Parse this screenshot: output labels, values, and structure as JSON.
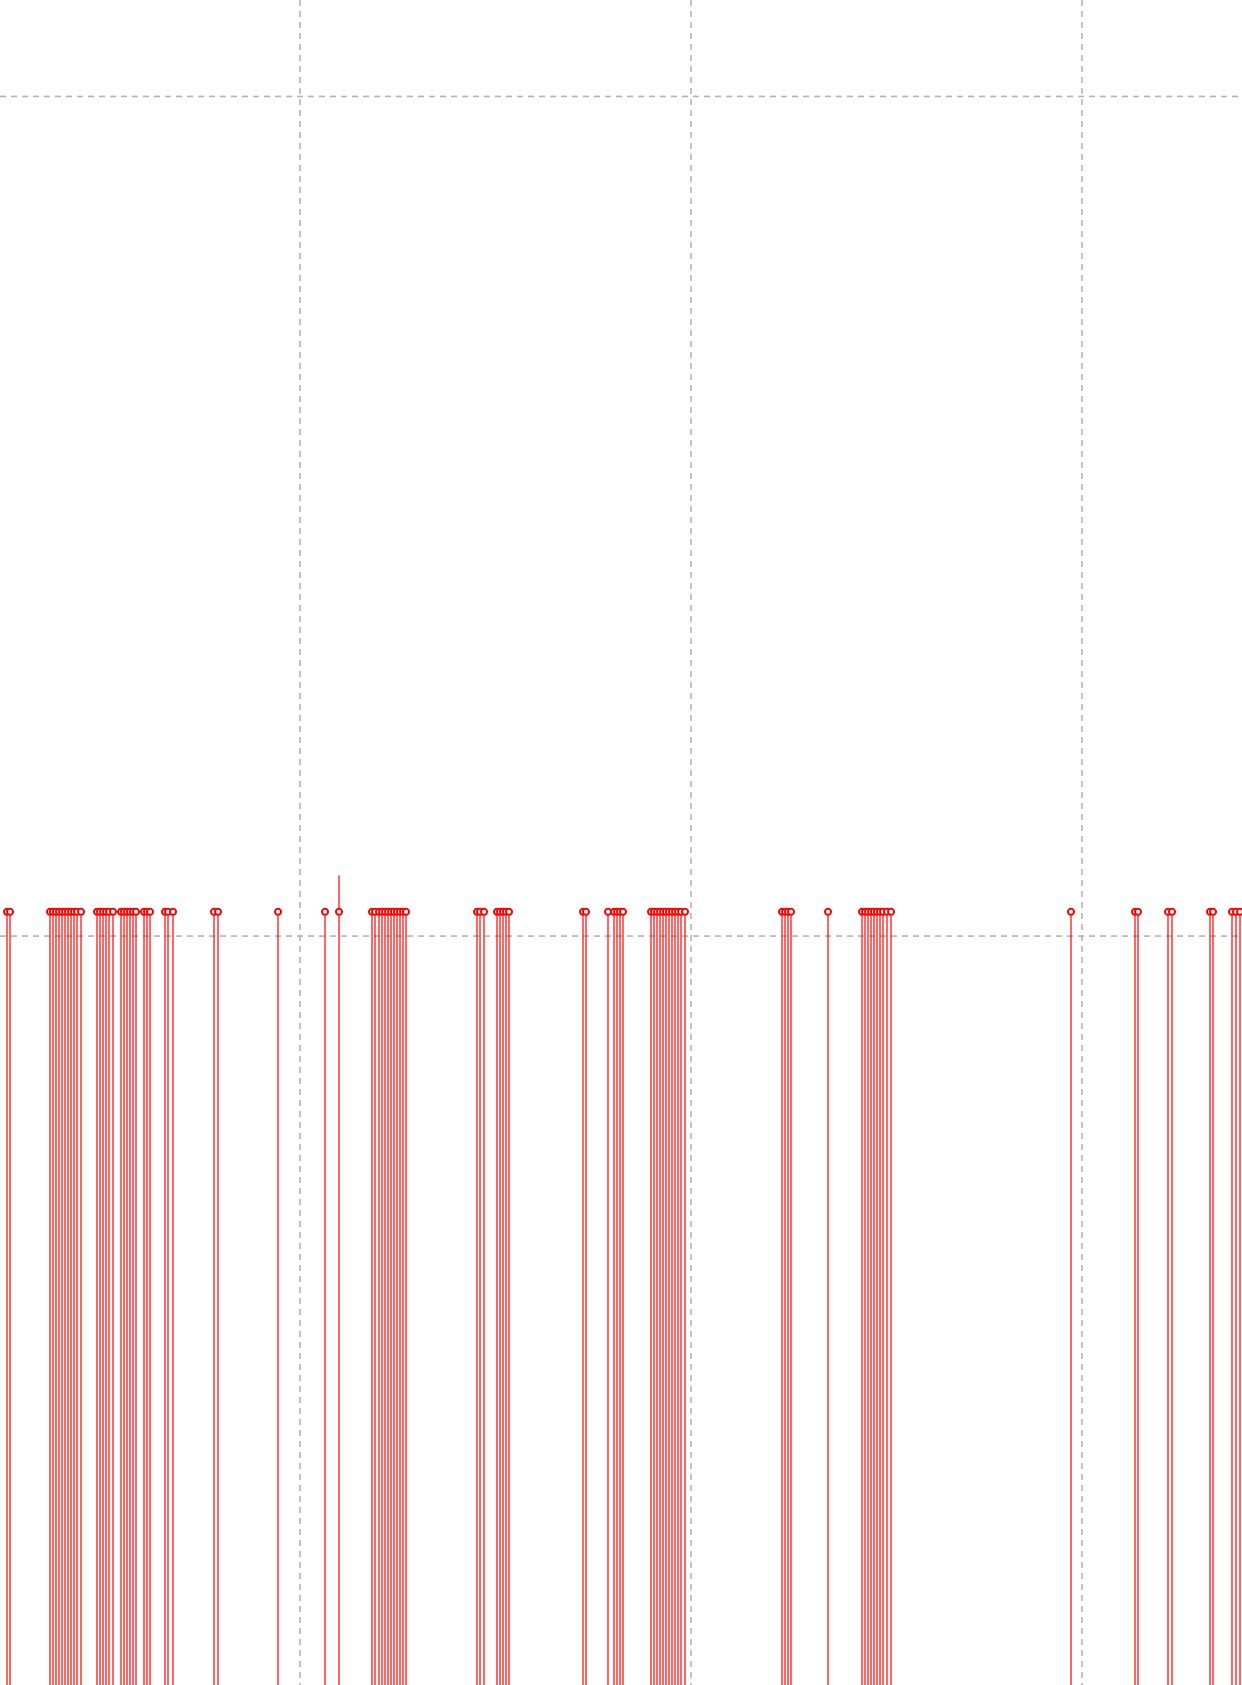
{
  "colors": {
    "background": "#ffffff",
    "grid": "#b4b4b4",
    "series": "#ff0000"
  },
  "chart_data": {
    "type": "scatter",
    "title": "",
    "xlabel": "",
    "ylabel": "",
    "grid": true,
    "legend": "none",
    "xlim": [
      0,
      1242
    ],
    "ylim": [
      -800,
      1000
    ],
    "x_gridlines": [
      300,
      691,
      1082
    ],
    "y_gridlines": [
      0,
      897
    ],
    "series": [
      {
        "marker": "circle-open",
        "stems": true,
        "baseline": -800,
        "points": [
          {
            "x": 7,
            "y": 26
          },
          {
            "x": 10,
            "y": 26
          },
          {
            "x": 50,
            "y": 26
          },
          {
            "x": 53,
            "y": 26
          },
          {
            "x": 56,
            "y": 26
          },
          {
            "x": 59,
            "y": 26
          },
          {
            "x": 62,
            "y": 26
          },
          {
            "x": 65,
            "y": 26
          },
          {
            "x": 68,
            "y": 26
          },
          {
            "x": 71,
            "y": 26
          },
          {
            "x": 74,
            "y": 26
          },
          {
            "x": 77,
            "y": 26
          },
          {
            "x": 81,
            "y": 26
          },
          {
            "x": 97,
            "y": 26
          },
          {
            "x": 100,
            "y": 26
          },
          {
            "x": 103,
            "y": 26
          },
          {
            "x": 106,
            "y": 26
          },
          {
            "x": 109,
            "y": 26
          },
          {
            "x": 113,
            "y": 26
          },
          {
            "x": 121,
            "y": 26
          },
          {
            "x": 124,
            "y": 26
          },
          {
            "x": 127,
            "y": 26
          },
          {
            "x": 130,
            "y": 26
          },
          {
            "x": 133,
            "y": 26
          },
          {
            "x": 136,
            "y": 26
          },
          {
            "x": 144,
            "y": 26
          },
          {
            "x": 147,
            "y": 26
          },
          {
            "x": 150,
            "y": 26
          },
          {
            "x": 165,
            "y": 26
          },
          {
            "x": 168,
            "y": 26
          },
          {
            "x": 173,
            "y": 26
          },
          {
            "x": 214,
            "y": 26
          },
          {
            "x": 218,
            "y": 26
          },
          {
            "x": 278,
            "y": 26
          },
          {
            "x": 325,
            "y": 26
          },
          {
            "x": 339,
            "y": 26,
            "spike": 65
          },
          {
            "x": 372,
            "y": 26
          },
          {
            "x": 375,
            "y": 26
          },
          {
            "x": 379,
            "y": 26
          },
          {
            "x": 382,
            "y": 26
          },
          {
            "x": 385,
            "y": 26
          },
          {
            "x": 388,
            "y": 26
          },
          {
            "x": 391,
            "y": 26
          },
          {
            "x": 394,
            "y": 26
          },
          {
            "x": 397,
            "y": 26
          },
          {
            "x": 400,
            "y": 26
          },
          {
            "x": 403,
            "y": 26
          },
          {
            "x": 406,
            "y": 26
          },
          {
            "x": 477,
            "y": 26
          },
          {
            "x": 480,
            "y": 26
          },
          {
            "x": 484,
            "y": 26
          },
          {
            "x": 497,
            "y": 26
          },
          {
            "x": 500,
            "y": 26
          },
          {
            "x": 503,
            "y": 26
          },
          {
            "x": 506,
            "y": 26
          },
          {
            "x": 509,
            "y": 26
          },
          {
            "x": 583,
            "y": 26
          },
          {
            "x": 586,
            "y": 26
          },
          {
            "x": 608,
            "y": 26
          },
          {
            "x": 614,
            "y": 26
          },
          {
            "x": 617,
            "y": 26
          },
          {
            "x": 620,
            "y": 26
          },
          {
            "x": 623,
            "y": 26
          },
          {
            "x": 651,
            "y": 26
          },
          {
            "x": 654,
            "y": 26
          },
          {
            "x": 657,
            "y": 26
          },
          {
            "x": 660,
            "y": 26
          },
          {
            "x": 663,
            "y": 26
          },
          {
            "x": 666,
            "y": 26
          },
          {
            "x": 669,
            "y": 26
          },
          {
            "x": 672,
            "y": 26
          },
          {
            "x": 675,
            "y": 26
          },
          {
            "x": 678,
            "y": 26
          },
          {
            "x": 681,
            "y": 26
          },
          {
            "x": 685,
            "y": 26
          },
          {
            "x": 782,
            "y": 26
          },
          {
            "x": 785,
            "y": 26
          },
          {
            "x": 788,
            "y": 26
          },
          {
            "x": 791,
            "y": 26
          },
          {
            "x": 828,
            "y": 26
          },
          {
            "x": 862,
            "y": 26
          },
          {
            "x": 865,
            "y": 26
          },
          {
            "x": 868,
            "y": 26
          },
          {
            "x": 871,
            "y": 26
          },
          {
            "x": 874,
            "y": 26
          },
          {
            "x": 877,
            "y": 26
          },
          {
            "x": 880,
            "y": 26
          },
          {
            "x": 883,
            "y": 26
          },
          {
            "x": 887,
            "y": 26
          },
          {
            "x": 891,
            "y": 26
          },
          {
            "x": 1071,
            "y": 26
          },
          {
            "x": 1135,
            "y": 26
          },
          {
            "x": 1138,
            "y": 26
          },
          {
            "x": 1168,
            "y": 26
          },
          {
            "x": 1172,
            "y": 26
          },
          {
            "x": 1210,
            "y": 26
          },
          {
            "x": 1213,
            "y": 26
          },
          {
            "x": 1232,
            "y": 26
          },
          {
            "x": 1236,
            "y": 26
          },
          {
            "x": 1240,
            "y": 26
          }
        ]
      }
    ]
  }
}
